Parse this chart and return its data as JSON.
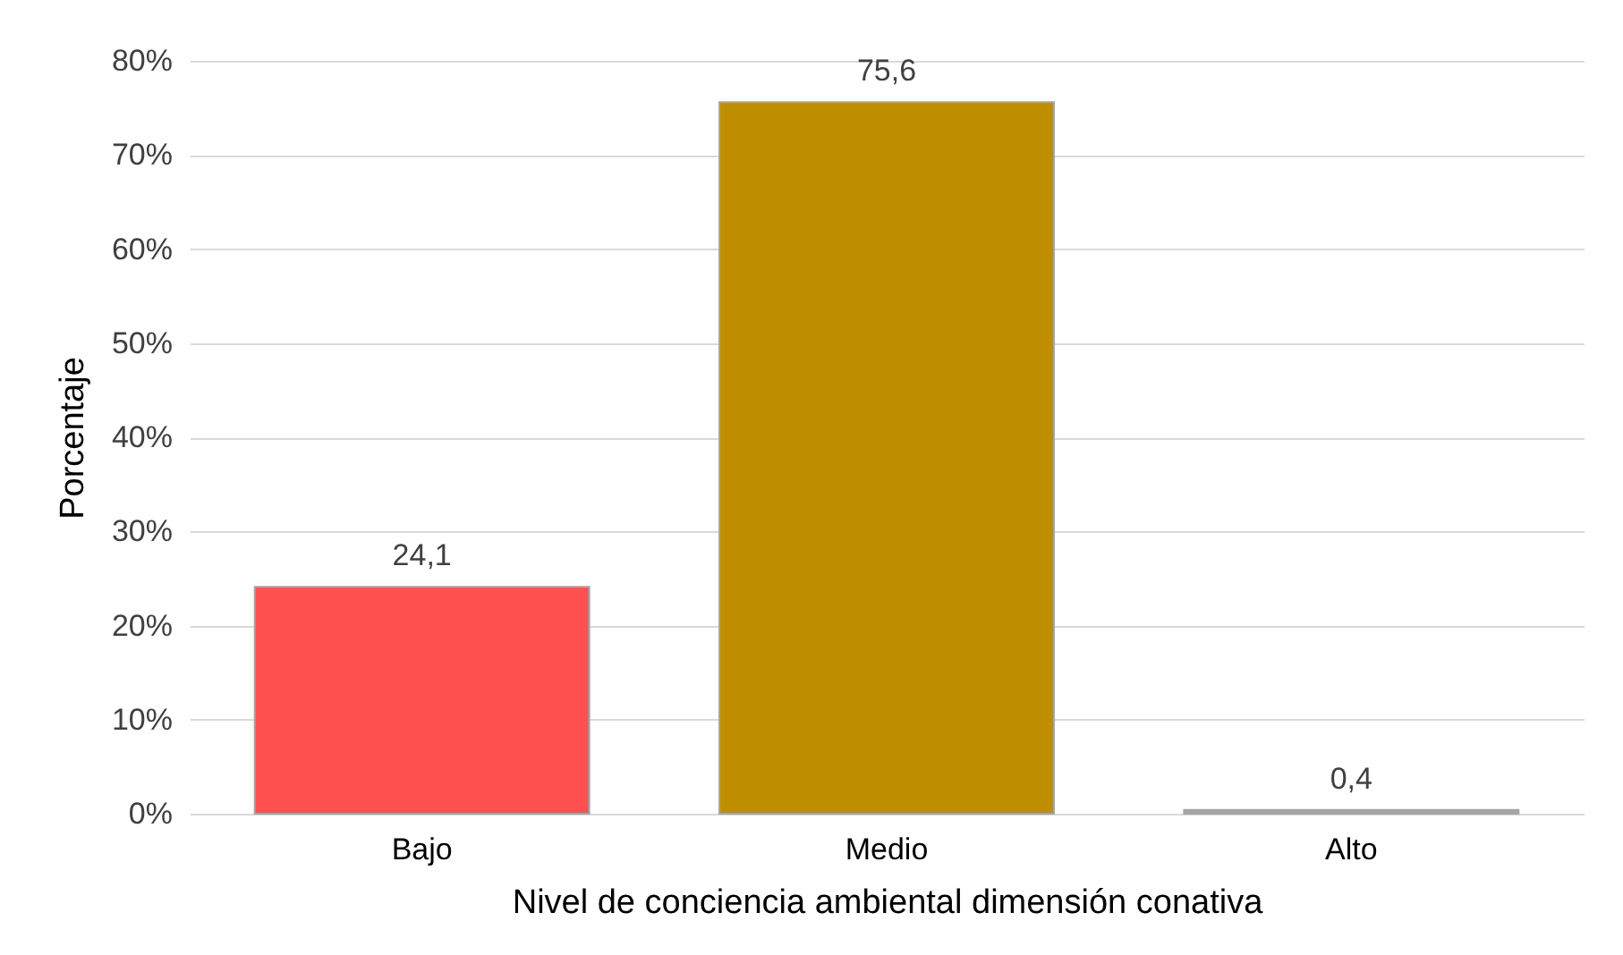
{
  "chart_data": {
    "type": "bar",
    "xlabel": "Nivel de conciencia ambiental dimensión conativa",
    "ylabel": "Porcentaje",
    "categories": [
      "Bajo",
      "Medio",
      "Alto"
    ],
    "values": [
      24.1,
      75.6,
      0.4
    ],
    "colors": [
      "#ff5050",
      "#bf8f00",
      "#a5a5a5"
    ],
    "value_labels": [
      "24,1",
      "75,6",
      "0,4"
    ],
    "ylim": [
      0,
      80
    ],
    "yticks": [
      {
        "value": 0,
        "label": "0%"
      },
      {
        "value": 10,
        "label": "10%"
      },
      {
        "value": 20,
        "label": "20%"
      },
      {
        "value": 30,
        "label": "30%"
      },
      {
        "value": 40,
        "label": "40%"
      },
      {
        "value": 50,
        "label": "50%"
      },
      {
        "value": 60,
        "label": "60%"
      },
      {
        "value": 70,
        "label": "70%"
      },
      {
        "value": 80,
        "label": "80%"
      }
    ],
    "grid": "y"
  }
}
